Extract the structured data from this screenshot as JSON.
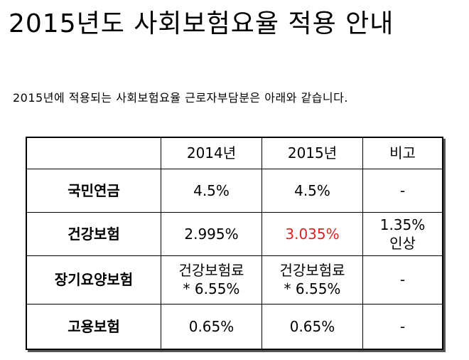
{
  "title": "2015년도 사회보험요율 적용 안내",
  "intro": "2015년에 적용되는 사회보험요율 근로자부담분은 아래와 같습니다.",
  "table": {
    "headers": [
      "",
      "2014년",
      "2015년",
      "비고"
    ],
    "rows": [
      {
        "label": "국민연금",
        "y2014": "4.5%",
        "y2015": "4.5%",
        "note": "-"
      },
      {
        "label": "건강보험",
        "y2014": "2.995%",
        "y2015": "3.035%",
        "note_line1": "1.35%",
        "note_line2": "인상"
      },
      {
        "label": "장기요양보험",
        "y2014_line1": "건강보험료",
        "y2014_line2": "* 6.55%",
        "y2015_line1": "건강보험료",
        "y2015_line2": "* 6.55%",
        "note": "-"
      },
      {
        "label": "고용보험",
        "y2014": "0.65%",
        "y2015": "0.65%",
        "note": "-"
      }
    ]
  },
  "colors": {
    "highlight": "#e02020"
  }
}
